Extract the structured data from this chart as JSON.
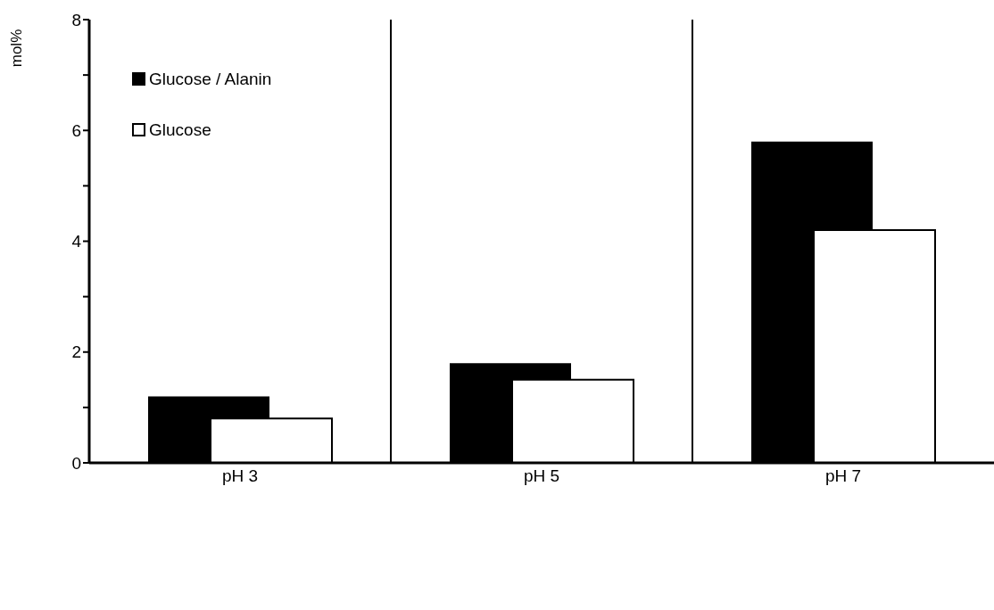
{
  "chart_data": {
    "type": "bar",
    "ylabel": "mol%",
    "categories": [
      "pH 3",
      "pH 5",
      "pH 7"
    ],
    "series": [
      {
        "name": "Glucose / Alanin",
        "color": "#000000",
        "values": [
          1.2,
          1.8,
          5.8
        ]
      },
      {
        "name": "Glucose",
        "color": "#ffffff",
        "values": [
          0.8,
          1.5,
          4.2
        ]
      }
    ],
    "ylim": [
      0,
      8
    ],
    "yticks": [
      0,
      {
        "value": 1,
        "label": null
      },
      2,
      {
        "value": 3,
        "label": null
      },
      4,
      {
        "value": 5,
        "label": null
      },
      6,
      {
        "value": 7,
        "label": null
      },
      8
    ],
    "grid": "x",
    "legend": "top left"
  }
}
